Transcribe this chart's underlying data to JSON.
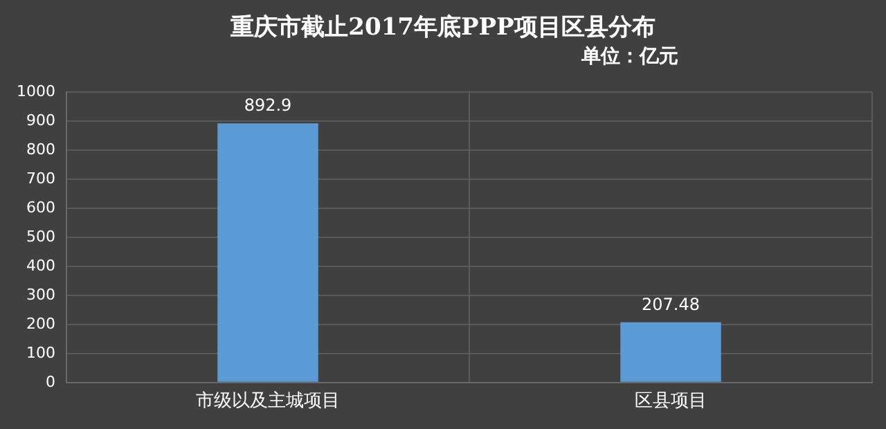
{
  "chart_data": {
    "type": "bar",
    "title": "重庆市截止2017年底PPP项目区县分布",
    "subtitle": "单位：亿元",
    "categories": [
      "市级以及主城项目",
      "区县项目"
    ],
    "values": [
      892.9,
      207.48
    ],
    "color": "#5b9bd5",
    "ylim": [
      0,
      1000
    ],
    "yticks": [
      0,
      100,
      200,
      300,
      400,
      500,
      600,
      700,
      800,
      900,
      1000
    ],
    "grid": true,
    "data_labels": true
  }
}
